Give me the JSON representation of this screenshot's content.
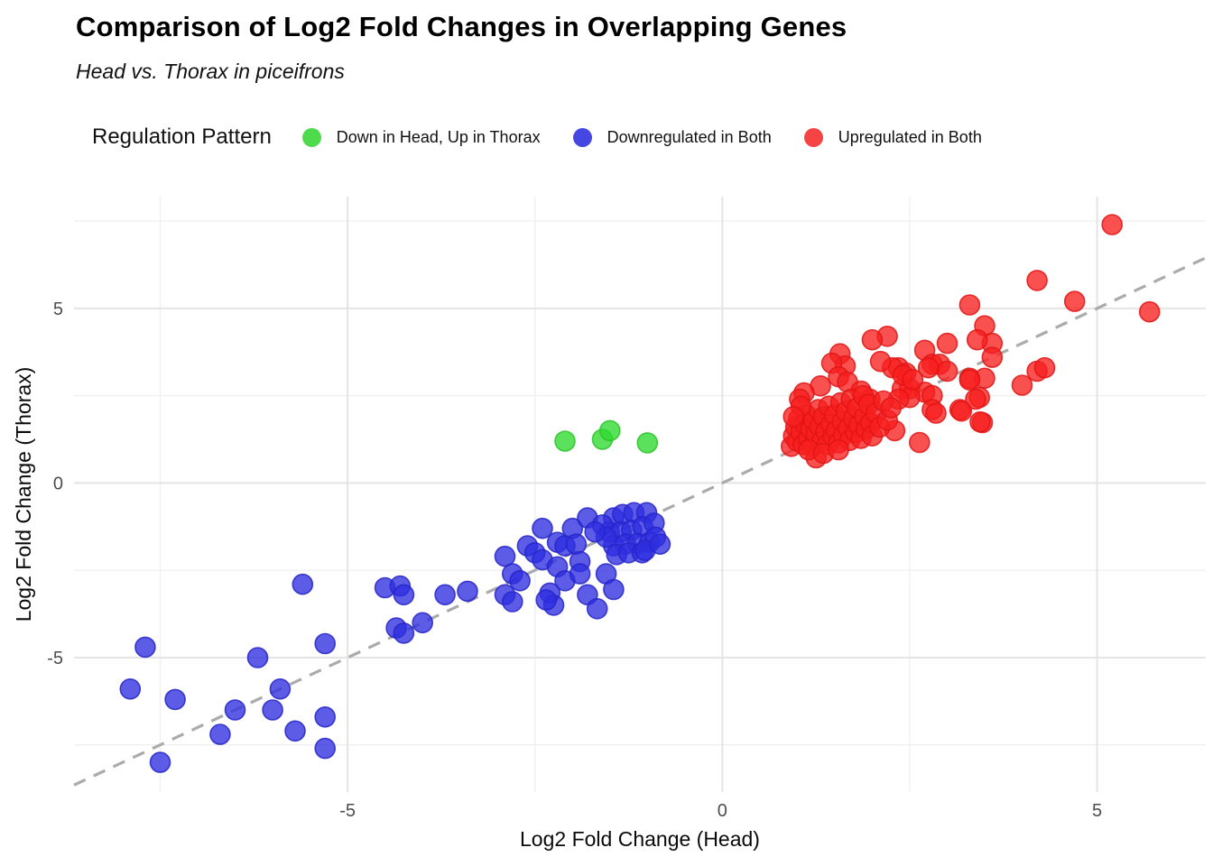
{
  "title": "Comparison of Log2 Fold Changes in Overlapping Genes",
  "subtitle": "Head vs. Thorax in piceifrons",
  "legend": {
    "title": "Regulation Pattern",
    "items": [
      {
        "label": "Down in Head, Up in Thorax",
        "color": "#4ddb4d"
      },
      {
        "label": "Downregulated in Both",
        "color": "#4646e2"
      },
      {
        "label": "Upregulated in Both",
        "color": "#f64343"
      }
    ]
  },
  "chart_data": {
    "type": "scatter",
    "title": "Comparison of Log2 Fold Changes in Overlapping Genes",
    "subtitle": "Head vs. Thorax in piceifrons",
    "xlabel": "Log2 Fold Change (Head)",
    "ylabel": "Log2 Fold Change (Thorax)",
    "xlim": [
      -8.65,
      6.45
    ],
    "ylim": [
      -8.85,
      8.2
    ],
    "xticks": [
      "-5",
      "0",
      "5"
    ],
    "xtick_values": [
      -5,
      0,
      5
    ],
    "yticks": [
      "-5",
      "0",
      "5"
    ],
    "ytick_values": [
      -5,
      0,
      5
    ],
    "minor_x": [
      -7.5,
      -2.5,
      2.5
    ],
    "minor_y": [
      -7.5,
      -2.5,
      2.5,
      7.5
    ],
    "grid": true,
    "legend_position": "top",
    "reference_line": {
      "type": "identity y=x",
      "style": "dashed",
      "color": "#ababab"
    },
    "series": [
      {
        "name": "Down in Head, Up in Thorax",
        "fill": "#2ed82e",
        "stroke": "#29c429",
        "points": [
          [
            -2.1,
            1.2
          ],
          [
            -1.6,
            1.25
          ],
          [
            -1.5,
            1.5
          ],
          [
            -1.0,
            1.15
          ]
        ]
      },
      {
        "name": "Downregulated in Both",
        "fill": "#2e2ee0",
        "stroke": "#2424c8",
        "points": [
          [
            -7.7,
            -4.7
          ],
          [
            -7.9,
            -5.9
          ],
          [
            -7.3,
            -6.2
          ],
          [
            -7.5,
            -8.0
          ],
          [
            -6.7,
            -7.2
          ],
          [
            -6.5,
            -6.5
          ],
          [
            -6.2,
            -5.0
          ],
          [
            -6.0,
            -6.5
          ],
          [
            -5.9,
            -5.9
          ],
          [
            -5.7,
            -7.1
          ],
          [
            -5.3,
            -6.7
          ],
          [
            -5.3,
            -7.6
          ],
          [
            -5.3,
            -4.6
          ],
          [
            -5.6,
            -2.9
          ],
          [
            -4.5,
            -3.0
          ],
          [
            -4.3,
            -2.95
          ],
          [
            -4.25,
            -3.2
          ],
          [
            -4.35,
            -4.15
          ],
          [
            -4.25,
            -4.3
          ],
          [
            -4.0,
            -4.0
          ],
          [
            -3.7,
            -3.2
          ],
          [
            -3.4,
            -3.1
          ],
          [
            -2.9,
            -2.1
          ],
          [
            -2.8,
            -2.6
          ],
          [
            -2.7,
            -2.8
          ],
          [
            -2.9,
            -3.2
          ],
          [
            -2.8,
            -3.4
          ],
          [
            -2.6,
            -1.8
          ],
          [
            -2.5,
            -2.0
          ],
          [
            -2.4,
            -1.3
          ],
          [
            -2.4,
            -2.2
          ],
          [
            -2.2,
            -1.7
          ],
          [
            -2.2,
            -2.4
          ],
          [
            -2.1,
            -1.8
          ],
          [
            -2.1,
            -2.8
          ],
          [
            -2.3,
            -3.15
          ],
          [
            -2.25,
            -3.5
          ],
          [
            -2.35,
            -3.35
          ],
          [
            -2.0,
            -1.3
          ],
          [
            -1.8,
            -1.0
          ],
          [
            -1.95,
            -1.75
          ],
          [
            -1.9,
            -2.25
          ],
          [
            -1.9,
            -2.6
          ],
          [
            -1.8,
            -3.2
          ],
          [
            -1.67,
            -3.6
          ],
          [
            -1.55,
            -2.6
          ],
          [
            -1.45,
            -3.05
          ],
          [
            -1.45,
            -1.0
          ],
          [
            -1.33,
            -0.9
          ],
          [
            -1.18,
            -0.85
          ],
          [
            -1.01,
            -0.85
          ],
          [
            -1.51,
            -1.4
          ],
          [
            -1.35,
            -1.4
          ],
          [
            -1.21,
            -1.35
          ],
          [
            -1.06,
            -1.25
          ],
          [
            -0.91,
            -1.15
          ],
          [
            -1.45,
            -1.8
          ],
          [
            -1.29,
            -1.75
          ],
          [
            -1.13,
            -1.73
          ],
          [
            -0.97,
            -1.7
          ],
          [
            -0.89,
            -1.55
          ],
          [
            -1.41,
            -2.05
          ],
          [
            -1.25,
            -2.0
          ],
          [
            -1.07,
            -2.0
          ],
          [
            -1.03,
            -1.93
          ],
          [
            -0.83,
            -1.75
          ],
          [
            -1.6,
            -1.2
          ],
          [
            -1.55,
            -1.55
          ],
          [
            -1.7,
            -1.4
          ]
        ]
      },
      {
        "name": "Upregulated in Both",
        "fill": "#f71f1f",
        "stroke": "#e01414",
        "points": [
          [
            5.2,
            7.4
          ],
          [
            4.2,
            5.8
          ],
          [
            4.7,
            5.2
          ],
          [
            5.7,
            4.9
          ],
          [
            3.3,
            5.1
          ],
          [
            3.5,
            4.5
          ],
          [
            3.6,
            4.0
          ],
          [
            3.6,
            3.6
          ],
          [
            3.4,
            4.1
          ],
          [
            3.0,
            4.0
          ],
          [
            4.2,
            3.2
          ],
          [
            4.0,
            2.8
          ],
          [
            4.3,
            3.3
          ],
          [
            2.2,
            4.2
          ],
          [
            2.0,
            4.1
          ],
          [
            2.7,
            3.8
          ],
          [
            2.8,
            3.4
          ],
          [
            2.9,
            3.4
          ],
          [
            3.0,
            3.2
          ],
          [
            2.75,
            3.3
          ],
          [
            2.35,
            3.3
          ],
          [
            2.45,
            3.15
          ],
          [
            2.27,
            3.3
          ],
          [
            3.3,
            3.0
          ],
          [
            3.5,
            3.0
          ],
          [
            3.3,
            2.95
          ],
          [
            2.4,
            2.7
          ],
          [
            2.5,
            2.7
          ],
          [
            2.7,
            2.6
          ],
          [
            2.8,
            2.5
          ],
          [
            2.5,
            2.45
          ],
          [
            2.35,
            2.4
          ],
          [
            2.8,
            2.1
          ],
          [
            2.85,
            2.0
          ],
          [
            3.17,
            2.1
          ],
          [
            3.43,
            2.45
          ],
          [
            3.47,
            1.73
          ],
          [
            2.63,
            1.16
          ],
          [
            2.3,
            1.5
          ],
          [
            1.57,
            3.7
          ],
          [
            1.64,
            3.35
          ],
          [
            1.46,
            3.43
          ],
          [
            1.55,
            3.04
          ],
          [
            1.31,
            2.78
          ],
          [
            1.67,
            2.89
          ],
          [
            1.09,
            2.58
          ],
          [
            1.03,
            2.4
          ],
          [
            1.85,
            2.63
          ],
          [
            1.97,
            2.4
          ],
          [
            2.11,
            3.48
          ],
          [
            2.41,
            3.09
          ],
          [
            2.54,
            2.96
          ],
          [
            3.38,
            2.4
          ],
          [
            3.44,
            1.75
          ],
          [
            3.19,
            2.06
          ],
          [
            0.92,
            1.05
          ],
          [
            0.95,
            1.35
          ],
          [
            0.98,
            1.6
          ],
          [
            1.0,
            1.2
          ],
          [
            1.02,
            1.85
          ],
          [
            1.05,
            1.45
          ],
          [
            1.08,
            1.1
          ],
          [
            1.1,
            1.7
          ],
          [
            1.12,
            1.95
          ],
          [
            1.15,
            1.3
          ],
          [
            1.18,
            1.55
          ],
          [
            1.2,
            1.05
          ],
          [
            1.22,
            1.8
          ],
          [
            1.25,
            0.72
          ],
          [
            1.25,
            1.4
          ],
          [
            1.28,
            2.1
          ],
          [
            1.3,
            1.62
          ],
          [
            1.32,
            1.18
          ],
          [
            1.35,
            1.9
          ],
          [
            1.38,
            1.48
          ],
          [
            1.4,
            1.1
          ],
          [
            1.42,
            2.2
          ],
          [
            1.45,
            1.68
          ],
          [
            1.48,
            1.32
          ],
          [
            1.5,
            1.95
          ],
          [
            1.52,
            1.5
          ],
          [
            1.55,
            1.15
          ],
          [
            1.58,
            2.3
          ],
          [
            1.6,
            1.75
          ],
          [
            1.62,
            1.38
          ],
          [
            1.65,
            2.05
          ],
          [
            1.68,
            1.58
          ],
          [
            1.7,
            1.22
          ],
          [
            1.72,
            2.4
          ],
          [
            1.75,
            1.85
          ],
          [
            1.78,
            1.45
          ],
          [
            1.8,
            2.15
          ],
          [
            1.82,
            1.65
          ],
          [
            1.85,
            1.28
          ],
          [
            1.88,
            2.5
          ],
          [
            1.9,
            1.9
          ],
          [
            1.92,
            1.55
          ],
          [
            1.95,
            2.25
          ],
          [
            1.98,
            1.72
          ],
          [
            2.0,
            1.35
          ],
          [
            2.05,
            2.0
          ],
          [
            2.1,
            1.6
          ],
          [
            2.15,
            2.35
          ],
          [
            2.2,
            1.8
          ],
          [
            2.25,
            2.15
          ],
          [
            1.15,
            0.95
          ],
          [
            1.35,
            0.85
          ],
          [
            1.55,
            0.95
          ],
          [
            1.05,
            2.2
          ],
          [
            0.95,
            1.9
          ]
        ]
      }
    ]
  }
}
